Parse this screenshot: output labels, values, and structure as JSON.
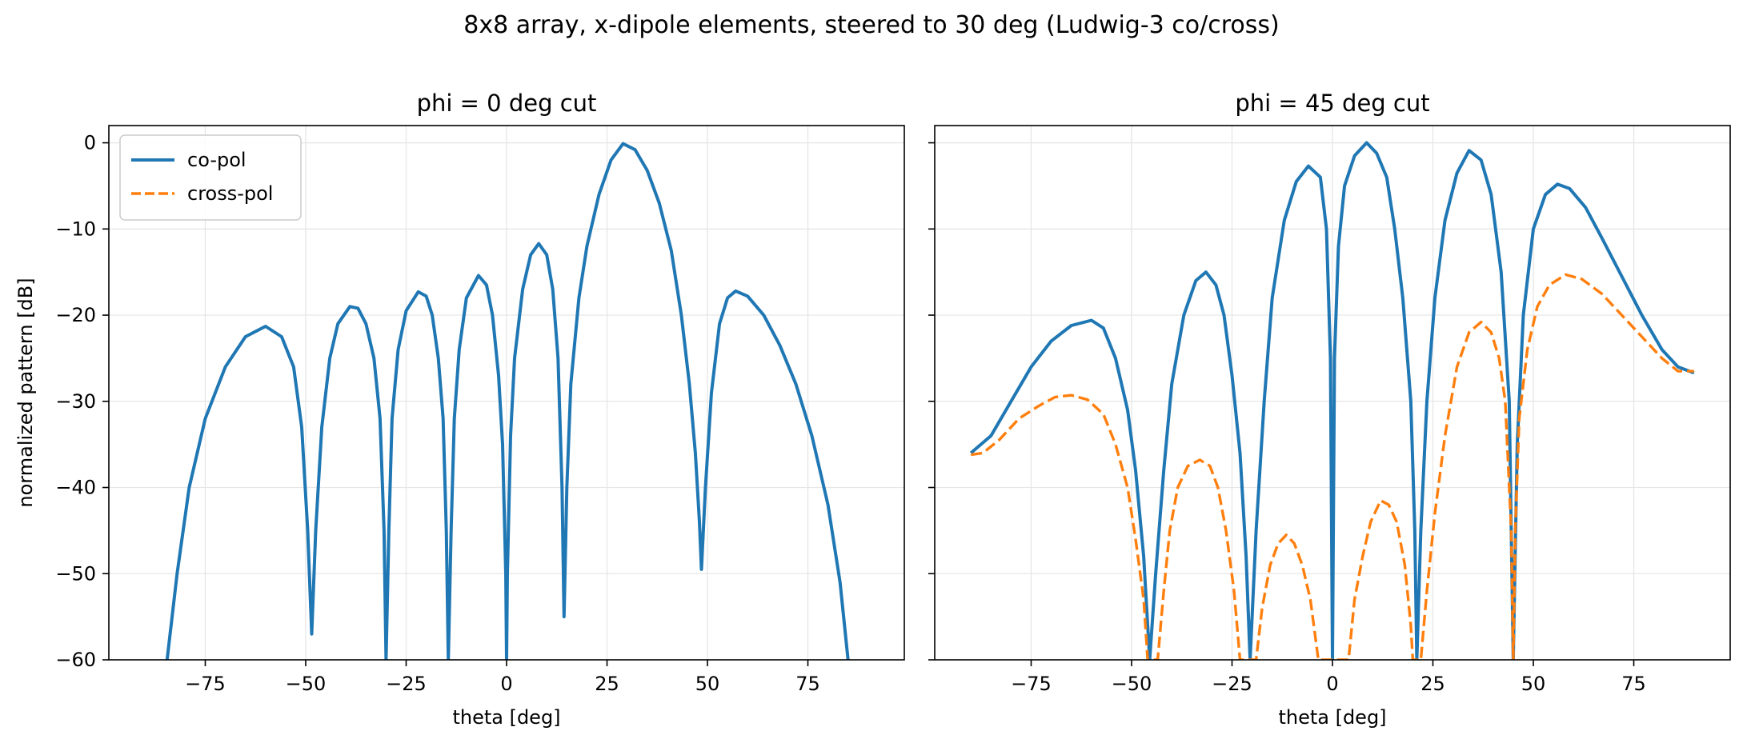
{
  "figure": {
    "title": "8x8 array, x-dipole elements, steered to 30 deg (Ludwig-3 co/cross)"
  },
  "colors": {
    "co_pol": "#1f77b4",
    "cross_pol": "#ff7f0e",
    "grid": "#e6e6e6",
    "axes": "#000000"
  },
  "chart_data": [
    {
      "type": "line",
      "title": "phi = 0 deg cut",
      "xlabel": "theta [deg]",
      "ylabel": "normalized pattern [dB]",
      "xlim": [
        -99,
        99
      ],
      "ylim": [
        -60,
        2
      ],
      "xticks": [
        -75,
        -50,
        -25,
        0,
        25,
        50,
        75
      ],
      "xtick_labels": [
        "−75",
        "−50",
        "−25",
        "0",
        "25",
        "50",
        "75"
      ],
      "yticks": [
        0,
        -10,
        -20,
        -30,
        -40,
        -50,
        -60
      ],
      "ytick_labels": [
        "0",
        "−10",
        "−20",
        "−30",
        "−40",
        "−50",
        "−60"
      ],
      "grid": true,
      "legend": {
        "placement": "upper-left",
        "entries": [
          "co-pol",
          "cross-pol"
        ]
      },
      "series": [
        {
          "name": "co-pol",
          "style": "solid",
          "color": "#1f77b4",
          "points": [
            [
              -84.5,
              -60
            ],
            [
              -82,
              -50
            ],
            [
              -79,
              -40
            ],
            [
              -75,
              -32
            ],
            [
              -70,
              -26
            ],
            [
              -65,
              -22.5
            ],
            [
              -60,
              -21.3
            ],
            [
              -56,
              -22.5
            ],
            [
              -53,
              -26
            ],
            [
              -51,
              -33
            ],
            [
              -49.5,
              -45
            ],
            [
              -48.5,
              -57
            ],
            [
              -48.5,
              -57
            ],
            [
              -47.5,
              -45
            ],
            [
              -46,
              -33
            ],
            [
              -44,
              -25
            ],
            [
              -42,
              -21
            ],
            [
              -39,
              -19
            ],
            [
              -37,
              -19.2
            ],
            [
              -35,
              -21
            ],
            [
              -33,
              -25
            ],
            [
              -31.5,
              -32
            ],
            [
              -30.5,
              -45
            ],
            [
              -30,
              -60
            ],
            [
              -30,
              -60
            ],
            [
              -29.3,
              -45
            ],
            [
              -28.5,
              -32
            ],
            [
              -27,
              -24
            ],
            [
              -25,
              -19.5
            ],
            [
              -22,
              -17.3
            ],
            [
              -20,
              -17.8
            ],
            [
              -18.5,
              -20
            ],
            [
              -17,
              -25
            ],
            [
              -15.8,
              -32
            ],
            [
              -15,
              -45
            ],
            [
              -14.5,
              -60
            ],
            [
              -14.5,
              -60
            ],
            [
              -13.8,
              -45
            ],
            [
              -13,
              -32
            ],
            [
              -11.8,
              -24
            ],
            [
              -10,
              -18
            ],
            [
              -7,
              -15.4
            ],
            [
              -5,
              -16.5
            ],
            [
              -3.5,
              -20
            ],
            [
              -2,
              -27
            ],
            [
              -1,
              -35
            ],
            [
              -0.2,
              -50
            ],
            [
              0,
              -60
            ],
            [
              0,
              -60
            ],
            [
              0.2,
              -50
            ],
            [
              1,
              -34
            ],
            [
              2,
              -25
            ],
            [
              4,
              -17
            ],
            [
              6,
              -13
            ],
            [
              8,
              -11.7
            ],
            [
              10,
              -13
            ],
            [
              11.5,
              -17
            ],
            [
              12.8,
              -25
            ],
            [
              13.8,
              -40
            ],
            [
              14.3,
              -55
            ],
            [
              14.3,
              -55
            ],
            [
              15,
              -40
            ],
            [
              16,
              -28
            ],
            [
              18,
              -18
            ],
            [
              20,
              -12
            ],
            [
              23,
              -6
            ],
            [
              26,
              -2
            ],
            [
              29,
              -0.1
            ],
            [
              32,
              -0.8
            ],
            [
              35,
              -3.2
            ],
            [
              38,
              -7
            ],
            [
              41,
              -12.5
            ],
            [
              43.5,
              -20
            ],
            [
              45.5,
              -28
            ],
            [
              47,
              -36
            ],
            [
              48,
              -44
            ],
            [
              48.5,
              -49.5
            ],
            [
              48.5,
              -49.5
            ],
            [
              49.5,
              -40
            ],
            [
              51,
              -29
            ],
            [
              53,
              -21
            ],
            [
              55,
              -18
            ],
            [
              57,
              -17.2
            ],
            [
              60,
              -17.8
            ],
            [
              64,
              -20
            ],
            [
              68,
              -23.5
            ],
            [
              72,
              -28
            ],
            [
              76,
              -34
            ],
            [
              80,
              -42
            ],
            [
              83,
              -51
            ],
            [
              85,
              -60
            ]
          ]
        }
      ]
    },
    {
      "type": "line",
      "title": "phi = 45 deg cut",
      "xlabel": "theta [deg]",
      "ylabel": "",
      "xlim": [
        -99,
        99
      ],
      "ylim": [
        -60,
        2
      ],
      "xticks": [
        -75,
        -50,
        -25,
        0,
        25,
        50,
        75
      ],
      "xtick_labels": [
        "−75",
        "−50",
        "−25",
        "0",
        "25",
        "50",
        "75"
      ],
      "yticks": [
        0,
        -10,
        -20,
        -30,
        -40,
        -50,
        -60
      ],
      "grid": true,
      "series": [
        {
          "name": "co-pol",
          "style": "solid",
          "color": "#1f77b4",
          "points": [
            [
              -90,
              -36
            ],
            [
              -85,
              -34
            ],
            [
              -80,
              -30
            ],
            [
              -75,
              -26
            ],
            [
              -70,
              -23
            ],
            [
              -65,
              -21.2
            ],
            [
              -60,
              -20.6
            ],
            [
              -57,
              -21.5
            ],
            [
              -54,
              -25
            ],
            [
              -51,
              -31
            ],
            [
              -49,
              -38
            ],
            [
              -47,
              -48
            ],
            [
              -45.5,
              -60
            ],
            [
              -45.5,
              -60
            ],
            [
              -44,
              -50
            ],
            [
              -42,
              -38
            ],
            [
              -40,
              -28
            ],
            [
              -37,
              -20
            ],
            [
              -34,
              -16
            ],
            [
              -31.5,
              -15
            ],
            [
              -29,
              -16.5
            ],
            [
              -27,
              -20
            ],
            [
              -25,
              -27
            ],
            [
              -23,
              -36
            ],
            [
              -21.5,
              -48
            ],
            [
              -20.5,
              -60
            ],
            [
              -20.5,
              -60
            ],
            [
              -19,
              -45
            ],
            [
              -17,
              -30
            ],
            [
              -15,
              -18
            ],
            [
              -12,
              -9
            ],
            [
              -9,
              -4.5
            ],
            [
              -6,
              -2.7
            ],
            [
              -3,
              -4
            ],
            [
              -1.5,
              -10
            ],
            [
              -0.5,
              -25
            ],
            [
              0,
              -60
            ],
            [
              0,
              -60
            ],
            [
              0.5,
              -25
            ],
            [
              1.5,
              -12
            ],
            [
              3,
              -5
            ],
            [
              5.5,
              -1.5
            ],
            [
              8.5,
              0
            ],
            [
              11,
              -1.2
            ],
            [
              13.5,
              -4
            ],
            [
              15.5,
              -10
            ],
            [
              17.5,
              -18
            ],
            [
              19.5,
              -30
            ],
            [
              20.5,
              -45
            ],
            [
              21,
              -60
            ],
            [
              21,
              -60
            ],
            [
              22,
              -45
            ],
            [
              23.5,
              -30
            ],
            [
              25.5,
              -18
            ],
            [
              28,
              -9
            ],
            [
              31,
              -3.5
            ],
            [
              34,
              -0.9
            ],
            [
              37,
              -2
            ],
            [
              39.5,
              -6
            ],
            [
              42,
              -15
            ],
            [
              44,
              -30
            ],
            [
              45,
              -60
            ],
            [
              45,
              -60
            ],
            [
              46,
              -35
            ],
            [
              47.5,
              -20
            ],
            [
              50,
              -10
            ],
            [
              53,
              -6
            ],
            [
              56,
              -4.8
            ],
            [
              59,
              -5.3
            ],
            [
              63,
              -7.5
            ],
            [
              67,
              -11
            ],
            [
              72,
              -15.5
            ],
            [
              77,
              -20
            ],
            [
              82,
              -24
            ],
            [
              86,
              -26
            ],
            [
              90,
              -26.7
            ]
          ]
        },
        {
          "name": "cross-pol",
          "style": "dashed",
          "color": "#ff7f0e",
          "points": [
            [
              -90,
              -36.2
            ],
            [
              -87,
              -36
            ],
            [
              -83,
              -34.5
            ],
            [
              -78,
              -32
            ],
            [
              -73,
              -30.5
            ],
            [
              -69,
              -29.5
            ],
            [
              -65,
              -29.3
            ],
            [
              -61,
              -29.8
            ],
            [
              -57,
              -31.5
            ],
            [
              -54,
              -35
            ],
            [
              -51,
              -40
            ],
            [
              -49,
              -46
            ],
            [
              -47,
              -53
            ],
            [
              -46,
              -60
            ],
            [
              -43.5,
              -60
            ],
            [
              -42,
              -52
            ],
            [
              -40.5,
              -45
            ],
            [
              -38.5,
              -40
            ],
            [
              -36,
              -37.5
            ],
            [
              -33,
              -36.8
            ],
            [
              -30.5,
              -37.5
            ],
            [
              -28.5,
              -40
            ],
            [
              -26.5,
              -45
            ],
            [
              -24.5,
              -52
            ],
            [
              -23,
              -60
            ],
            [
              -19,
              -60
            ],
            [
              -17.5,
              -54
            ],
            [
              -15.5,
              -49
            ],
            [
              -13.5,
              -46.5
            ],
            [
              -11.5,
              -45.5
            ],
            [
              -9.5,
              -46.5
            ],
            [
              -7.5,
              -49
            ],
            [
              -5.5,
              -53
            ],
            [
              -3.5,
              -60
            ],
            [
              4,
              -60
            ],
            [
              5.5,
              -53
            ],
            [
              7.5,
              -48
            ],
            [
              9.5,
              -44
            ],
            [
              12,
              -41.5
            ],
            [
              14,
              -42
            ],
            [
              16,
              -44
            ],
            [
              18,
              -49
            ],
            [
              19.5,
              -56
            ],
            [
              20,
              -60
            ],
            [
              22,
              -60
            ],
            [
              23.5,
              -52
            ],
            [
              25.5,
              -43
            ],
            [
              28,
              -34
            ],
            [
              31,
              -26
            ],
            [
              34,
              -22
            ],
            [
              37,
              -20.8
            ],
            [
              39.5,
              -22
            ],
            [
              41.5,
              -25
            ],
            [
              43,
              -30
            ],
            [
              44.5,
              -45
            ],
            [
              45,
              -60
            ],
            [
              45,
              -60
            ],
            [
              45.5,
              -45
            ],
            [
              46.5,
              -32
            ],
            [
              48.5,
              -24
            ],
            [
              51,
              -19
            ],
            [
              54,
              -16.5
            ],
            [
              58,
              -15.3
            ],
            [
              62,
              -15.8
            ],
            [
              67,
              -17.5
            ],
            [
              72,
              -20
            ],
            [
              77,
              -22.5
            ],
            [
              82,
              -25
            ],
            [
              86,
              -26.5
            ],
            [
              90,
              -26.5
            ]
          ]
        }
      ]
    }
  ]
}
